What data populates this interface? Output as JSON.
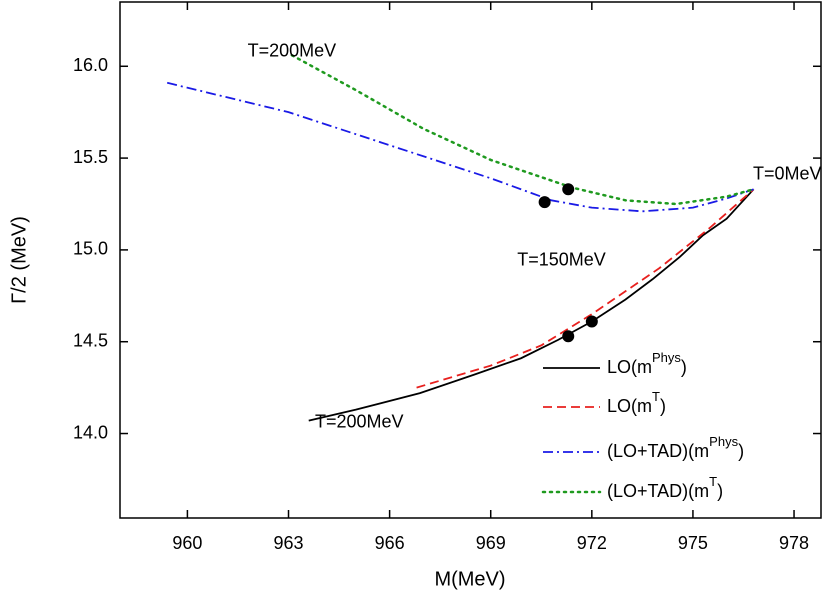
{
  "chart_data": {
    "type": "line",
    "x_label": "M(MeV)",
    "y_label": "Γ/2 (MeV)",
    "xlim": [
      958,
      978.8
    ],
    "ylim": [
      13.54,
      16.35
    ],
    "xticks": [
      960,
      963,
      966,
      969,
      972,
      975,
      978
    ],
    "yticks": [
      {
        "value": 14.0,
        "label": "14.0"
      },
      {
        "value": 14.5,
        "label": "14.5"
      },
      {
        "value": 15.0,
        "label": "15.0"
      },
      {
        "value": 15.5,
        "label": "15.5"
      },
      {
        "value": 16.0,
        "label": "16.0"
      }
    ],
    "legend": "bottom-right",
    "series": [
      {
        "name": [
          "LO(m",
          "Phys",
          ")"
        ],
        "color": "#000000",
        "style": "solid",
        "x": [
          963.6,
          965,
          966.9,
          968.5,
          969.9,
          971,
          972,
          973,
          973.8,
          974.6,
          975.3,
          976,
          976.8
        ],
        "values": [
          14.07,
          14.13,
          14.22,
          14.32,
          14.41,
          14.51,
          14.61,
          14.73,
          14.84,
          14.96,
          15.08,
          15.17,
          15.33
        ]
      },
      {
        "name": [
          "LO(m",
          "T",
          ")"
        ],
        "color": "#e8201e",
        "style": "dash",
        "x": [
          966.8,
          969,
          970.5,
          972,
          974,
          975.5,
          976.8
        ],
        "values": [
          14.25,
          14.37,
          14.48,
          14.65,
          14.9,
          15.12,
          15.33
        ]
      },
      {
        "name": [
          "(LO+TAD)(m",
          "Phys",
          ")"
        ],
        "color": "#1a1ae6",
        "style": "dashdot",
        "x": [
          959.4,
          963,
          966,
          969,
          970.8,
          972,
          973.5,
          975,
          976,
          976.8
        ],
        "values": [
          15.91,
          15.75,
          15.57,
          15.39,
          15.27,
          15.23,
          15.21,
          15.23,
          15.28,
          15.33
        ]
      },
      {
        "name": [
          "(LO+TAD)(m",
          "T",
          ")"
        ],
        "color": "#1f9a1f",
        "style": "dot",
        "x": [
          963.1,
          965,
          967,
          969,
          971.4,
          973,
          974.5,
          976,
          976.8
        ],
        "values": [
          16.06,
          15.87,
          15.66,
          15.49,
          15.34,
          15.27,
          15.25,
          15.29,
          15.33
        ]
      }
    ],
    "points": {
      "color": "#000000",
      "x": [
        970.6,
        971.3,
        971.3,
        972.0
      ],
      "values": [
        15.26,
        15.33,
        14.53,
        14.61
      ]
    },
    "annotations": [
      {
        "text": "T=200MeV",
        "x": 963.1,
        "y": 16.08
      },
      {
        "text": "T=0MeV",
        "x": 977.8,
        "y": 15.41
      },
      {
        "text": "T=150MeV",
        "x": 971.1,
        "y": 14.94
      },
      {
        "text": "T=200MeV",
        "x": 965.1,
        "y": 14.06
      }
    ]
  }
}
